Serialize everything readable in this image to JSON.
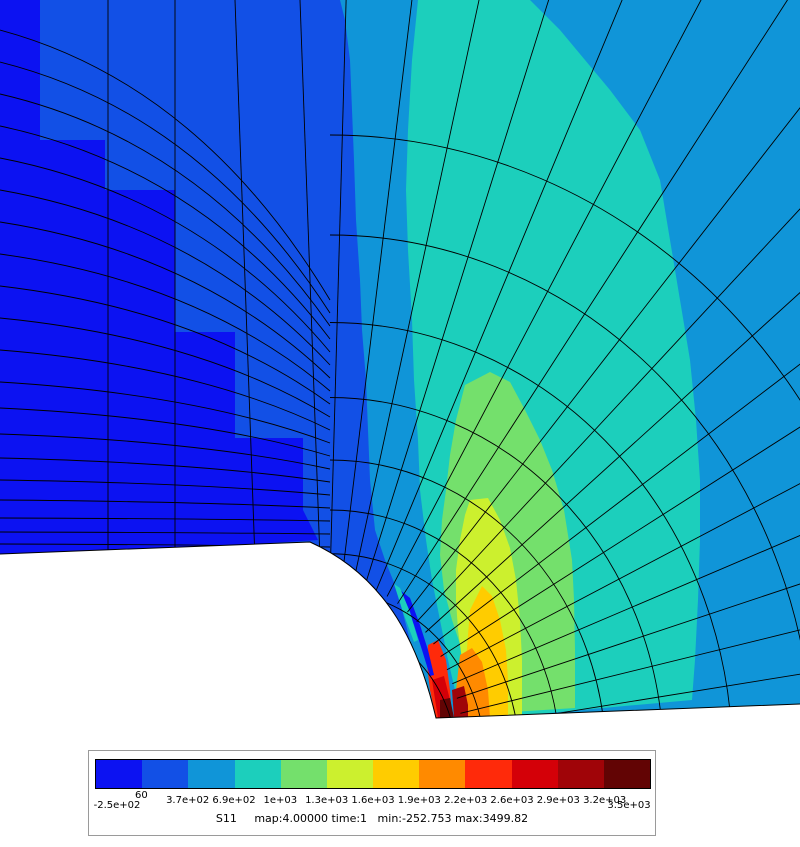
{
  "plot": {
    "variable": "S11",
    "map": "map:4.00000",
    "time": "time:1",
    "min": "min:-252.753",
    "max": "max:3499.82"
  },
  "legend": {
    "colors": [
      "#0c12f2",
      "#1250e6",
      "#1095d8",
      "#1ccfbc",
      "#74e06c",
      "#ccf02e",
      "#ffcc00",
      "#ff8a00",
      "#ff2a0a",
      "#d40008",
      "#a00408",
      "#620404"
    ],
    "tick_labels": [
      "-2.5e+02",
      "60",
      "3.7e+02",
      "6.9e+02",
      "1e+03",
      "1.3e+03",
      "1.6e+03",
      "1.9e+03",
      "2.2e+03",
      "2.6e+03",
      "2.9e+03",
      "3.2e+03",
      "3.5e+03"
    ]
  }
}
